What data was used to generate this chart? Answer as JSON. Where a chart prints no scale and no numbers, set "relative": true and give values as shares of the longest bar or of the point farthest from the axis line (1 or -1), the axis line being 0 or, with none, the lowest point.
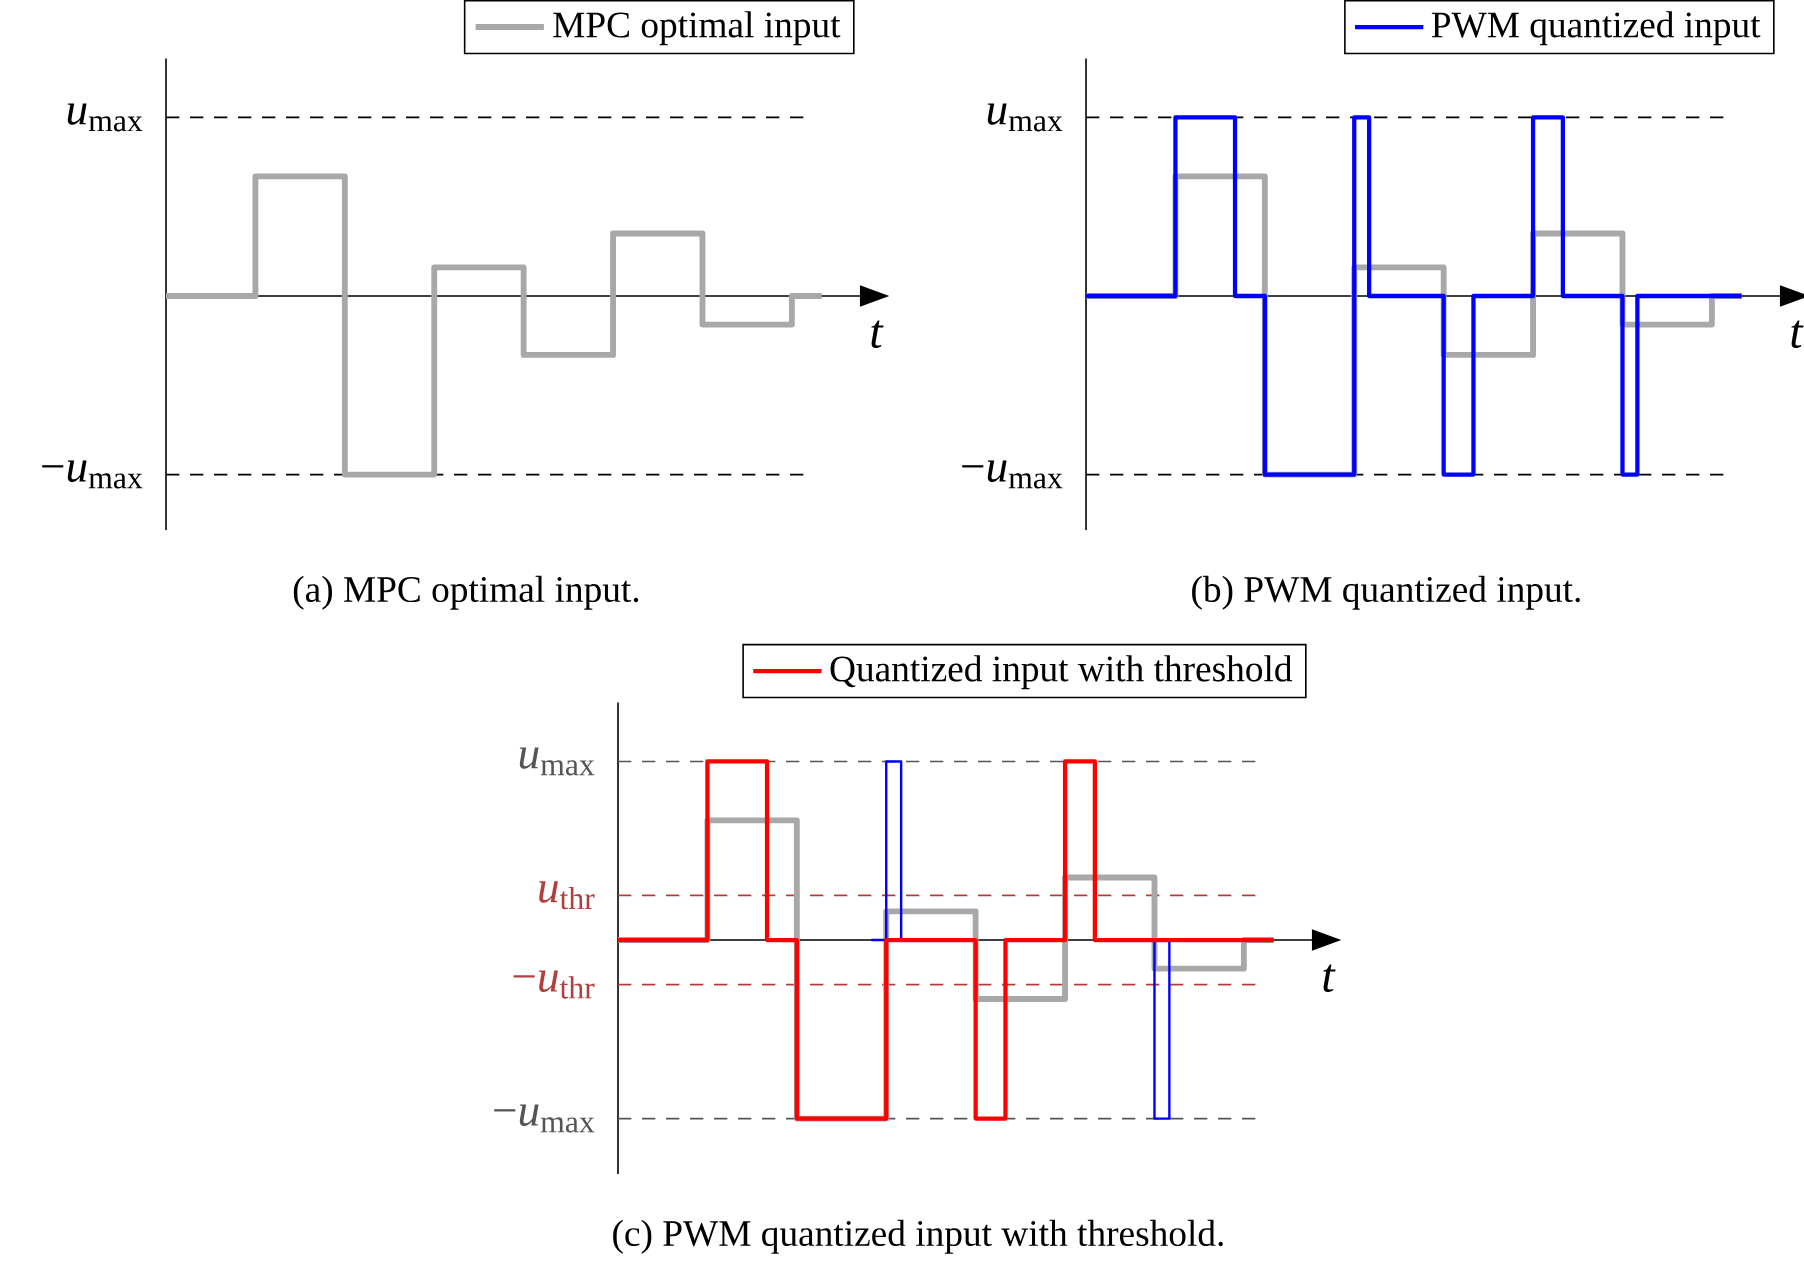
{
  "chart_data": [
    {
      "type": "step",
      "relative": true,
      "xlabel": "t",
      "legend": "top right",
      "categories": [
        null,
        null,
        null,
        null,
        null,
        null,
        null,
        null,
        null,
        null,
        null,
        null,
        null,
        null,
        null,
        null,
        null,
        null,
        null,
        null,
        null,
        null,
        null,
        null,
        null,
        null,
        null,
        null,
        null,
        null,
        null,
        null,
        null,
        null,
        null,
        null,
        null,
        null,
        null,
        null,
        null,
        null,
        null,
        null,
        null
      ],
      "ref_lines": [
        {
          "axis": "y",
          "value": 1,
          "label": "*u*$_{max}$",
          "color": "#000000",
          "line_style": "dashed"
        },
        {
          "axis": "y",
          "value": -1,
          "label": "−*u*$_{max}$",
          "color": "#000000",
          "line_style": "dashed"
        }
      ],
      "series": [
        {
          "name": "MPC optimal input",
          "color": "#a8a8a8",
          "values": [
            0,
            0,
            0,
            0,
            0,
            0,
            0.67,
            0.67,
            0.67,
            0.67,
            0.67,
            0.67,
            -1,
            -1,
            -1,
            -1,
            -1,
            -1,
            0.16,
            0.16,
            0.16,
            0.16,
            0.16,
            0.16,
            -0.33,
            -0.33,
            -0.33,
            -0.33,
            -0.33,
            -0.33,
            0.35,
            0.35,
            0.35,
            0.35,
            0.35,
            0.35,
            -0.16,
            -0.16,
            -0.16,
            -0.16,
            -0.16,
            -0.16,
            0,
            0,
            0
          ]
        }
      ],
      "annotations": [
        "(a)  MPC optimal input."
      ]
    },
    {
      "type": "step",
      "relative": true,
      "xlabel": "t",
      "legend": "top right",
      "categories": [
        null,
        null,
        null,
        null,
        null,
        null,
        null,
        null,
        null,
        null,
        null,
        null,
        null,
        null,
        null,
        null,
        null,
        null,
        null,
        null,
        null,
        null,
        null,
        null,
        null,
        null,
        null,
        null,
        null,
        null,
        null,
        null,
        null,
        null,
        null,
        null,
        null,
        null,
        null,
        null,
        null,
        null,
        null,
        null,
        null
      ],
      "ref_lines": [
        {
          "axis": "y",
          "value": 1,
          "label": "*u*$_{max}$",
          "color": "#000000",
          "line_style": "dashed"
        },
        {
          "axis": "y",
          "value": -1,
          "label": "−*u*$_{max}$",
          "color": "#000000",
          "line_style": "dashed"
        }
      ],
      "series": [
        {
          "color": "#a8a8a8",
          "values": [
            0,
            0,
            0,
            0,
            0,
            0,
            0.67,
            0.67,
            0.67,
            0.67,
            0.67,
            0.67,
            -1,
            -1,
            -1,
            -1,
            -1,
            -1,
            0.16,
            0.16,
            0.16,
            0.16,
            0.16,
            0.16,
            -0.33,
            -0.33,
            -0.33,
            -0.33,
            -0.33,
            -0.33,
            0.35,
            0.35,
            0.35,
            0.35,
            0.35,
            0.35,
            -0.16,
            -0.16,
            -0.16,
            -0.16,
            -0.16,
            -0.16,
            0,
            0,
            0
          ]
        },
        {
          "name": "PWM quantized input",
          "color": "#0000ff",
          "values": [
            0,
            0,
            0,
            0,
            0,
            0,
            1,
            1,
            1,
            1,
            0,
            0,
            -1,
            -1,
            -1,
            -1,
            -1,
            -1,
            1,
            0,
            0,
            0,
            0,
            0,
            -1,
            -1,
            0,
            0,
            0,
            0,
            1,
            1,
            0,
            0,
            0,
            0,
            -1,
            0,
            0,
            0,
            0,
            0,
            0,
            0,
            0
          ]
        }
      ],
      "annotations": [
        "(b)  PWM quantized input."
      ]
    },
    {
      "type": "step",
      "relative": true,
      "xlabel": "t",
      "legend": "top right",
      "categories": [
        null,
        null,
        null,
        null,
        null,
        null,
        null,
        null,
        null,
        null,
        null,
        null,
        null,
        null,
        null,
        null,
        null,
        null,
        null,
        null,
        null,
        null,
        null,
        null,
        null,
        null,
        null,
        null,
        null,
        null,
        null,
        null,
        null,
        null,
        null,
        null,
        null,
        null,
        null,
        null,
        null,
        null,
        null,
        null,
        null
      ],
      "ref_lines": [
        {
          "axis": "y",
          "value": 1,
          "label": "*u*$_{max}$",
          "color": "#555555",
          "line_style": "dashed"
        },
        {
          "axis": "y",
          "value": -1,
          "label": "−*u*$_{max}$",
          "color": "#555555",
          "line_style": "dashed"
        },
        {
          "axis": "y",
          "value": 0.25,
          "label": "*u*$_{thr}$",
          "color": "#b04040",
          "line_style": "dashed"
        },
        {
          "axis": "y",
          "value": -0.25,
          "label": "−*u*$_{thr}$",
          "color": "#b04040",
          "line_style": "dashed"
        }
      ],
      "series": [
        {
          "color": "#a8a8a8",
          "values": [
            0,
            0,
            0,
            0,
            0,
            0,
            0.67,
            0.67,
            0.67,
            0.67,
            0.67,
            0.67,
            -1,
            -1,
            -1,
            -1,
            -1,
            -1,
            0.16,
            0.16,
            0.16,
            0.16,
            0.16,
            0.16,
            -0.33,
            -0.33,
            -0.33,
            -0.33,
            -0.33,
            -0.33,
            0.35,
            0.35,
            0.35,
            0.35,
            0.35,
            0.35,
            -0.16,
            -0.16,
            -0.16,
            -0.16,
            -0.16,
            -0.16,
            0,
            0,
            0
          ]
        },
        {
          "color": "#0000ff",
          "values": [
            null,
            null,
            null,
            null,
            null,
            null,
            null,
            null,
            null,
            null,
            null,
            null,
            null,
            null,
            null,
            null,
            null,
            0,
            1,
            0,
            null,
            null,
            null,
            null,
            null,
            null,
            null,
            null,
            null,
            null,
            null,
            null,
            null,
            null,
            null,
            0,
            -1,
            0,
            null,
            null,
            null,
            null,
            null,
            null,
            null
          ]
        },
        {
          "name": "Quantized input with threshold",
          "color": "#ff0000",
          "values": [
            0,
            0,
            0,
            0,
            0,
            0,
            1,
            1,
            1,
            1,
            0,
            0,
            -1,
            -1,
            -1,
            -1,
            -1,
            -1,
            0,
            0,
            0,
            0,
            0,
            0,
            -1,
            -1,
            0,
            0,
            0,
            0,
            1,
            1,
            0,
            0,
            0,
            0,
            0,
            0,
            0,
            0,
            0,
            0,
            0,
            0,
            0
          ]
        }
      ],
      "annotations": [
        "(c)  PWM quantized input with threshold."
      ]
    }
  ]
}
